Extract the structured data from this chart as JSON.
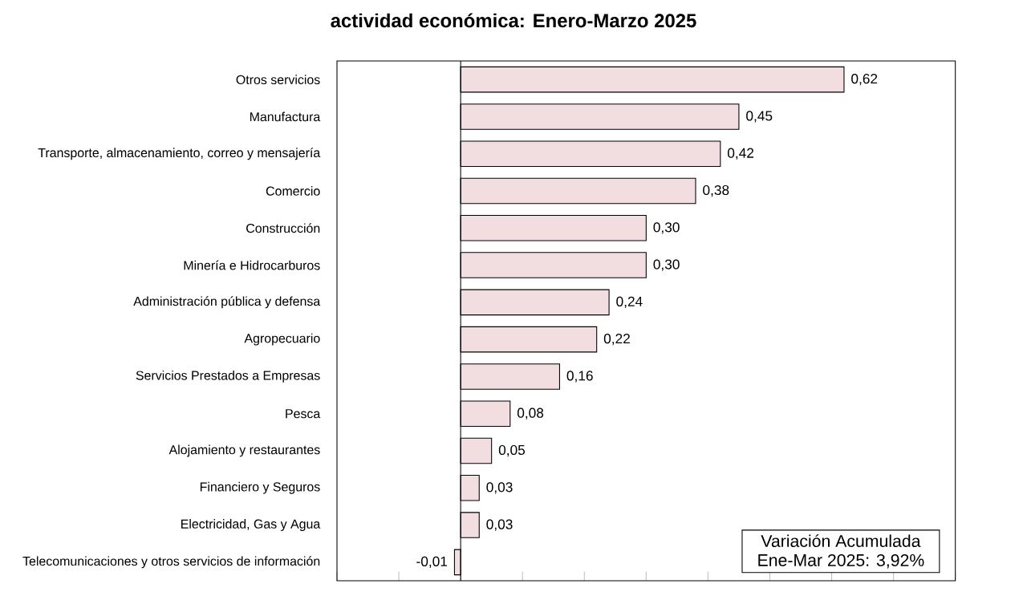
{
  "chart_data": {
    "type": "bar",
    "orientation": "horizontal",
    "title": "actividad económica: Enero-Marzo 2025",
    "categories": [
      "Otros servicios",
      "Manufactura",
      "Transporte, almacenamiento, correo y mensajería",
      "Comercio",
      "Construcción",
      "Minería e Hidrocarburos",
      "Administración pública y defensa",
      "Agropecuario",
      "Servicios Prestados a Empresas",
      "Pesca",
      "Alojamiento y restaurantes",
      "Financiero y Seguros",
      "Electricidad, Gas y Agua",
      "Telecomunicaciones y otros servicios de información"
    ],
    "values": [
      0.62,
      0.45,
      0.42,
      0.38,
      0.3,
      0.3,
      0.24,
      0.22,
      0.16,
      0.08,
      0.05,
      0.03,
      0.03,
      -0.01
    ],
    "value_labels": [
      "0,62",
      "0,45",
      "0,42",
      "0,38",
      "0,30",
      "0,30",
      "0,24",
      "0,22",
      "0,16",
      "0,08",
      "0,05",
      "0,03",
      "0,03",
      "-0,01"
    ],
    "color": "#f2dde1",
    "xlim": [
      -0.2,
      0.8
    ],
    "xticks": [
      {
        "value": -0.2,
        "label": null
      },
      {
        "value": -0.1,
        "label": null
      },
      {
        "value": 0,
        "label": null
      },
      {
        "value": 0.1,
        "label": null
      },
      {
        "value": 0.2,
        "label": null
      },
      {
        "value": 0.3,
        "label": null
      },
      {
        "value": 0.4,
        "label": null
      },
      {
        "value": 0.5,
        "label": null
      },
      {
        "value": 0.6,
        "label": null
      },
      {
        "value": 0.7,
        "label": null
      },
      {
        "value": 0.8,
        "label": null
      }
    ],
    "tick_labels": "y",
    "annotations": [
      "Variación Acumulada",
      "Ene-Mar 2025: 3,92%"
    ]
  }
}
